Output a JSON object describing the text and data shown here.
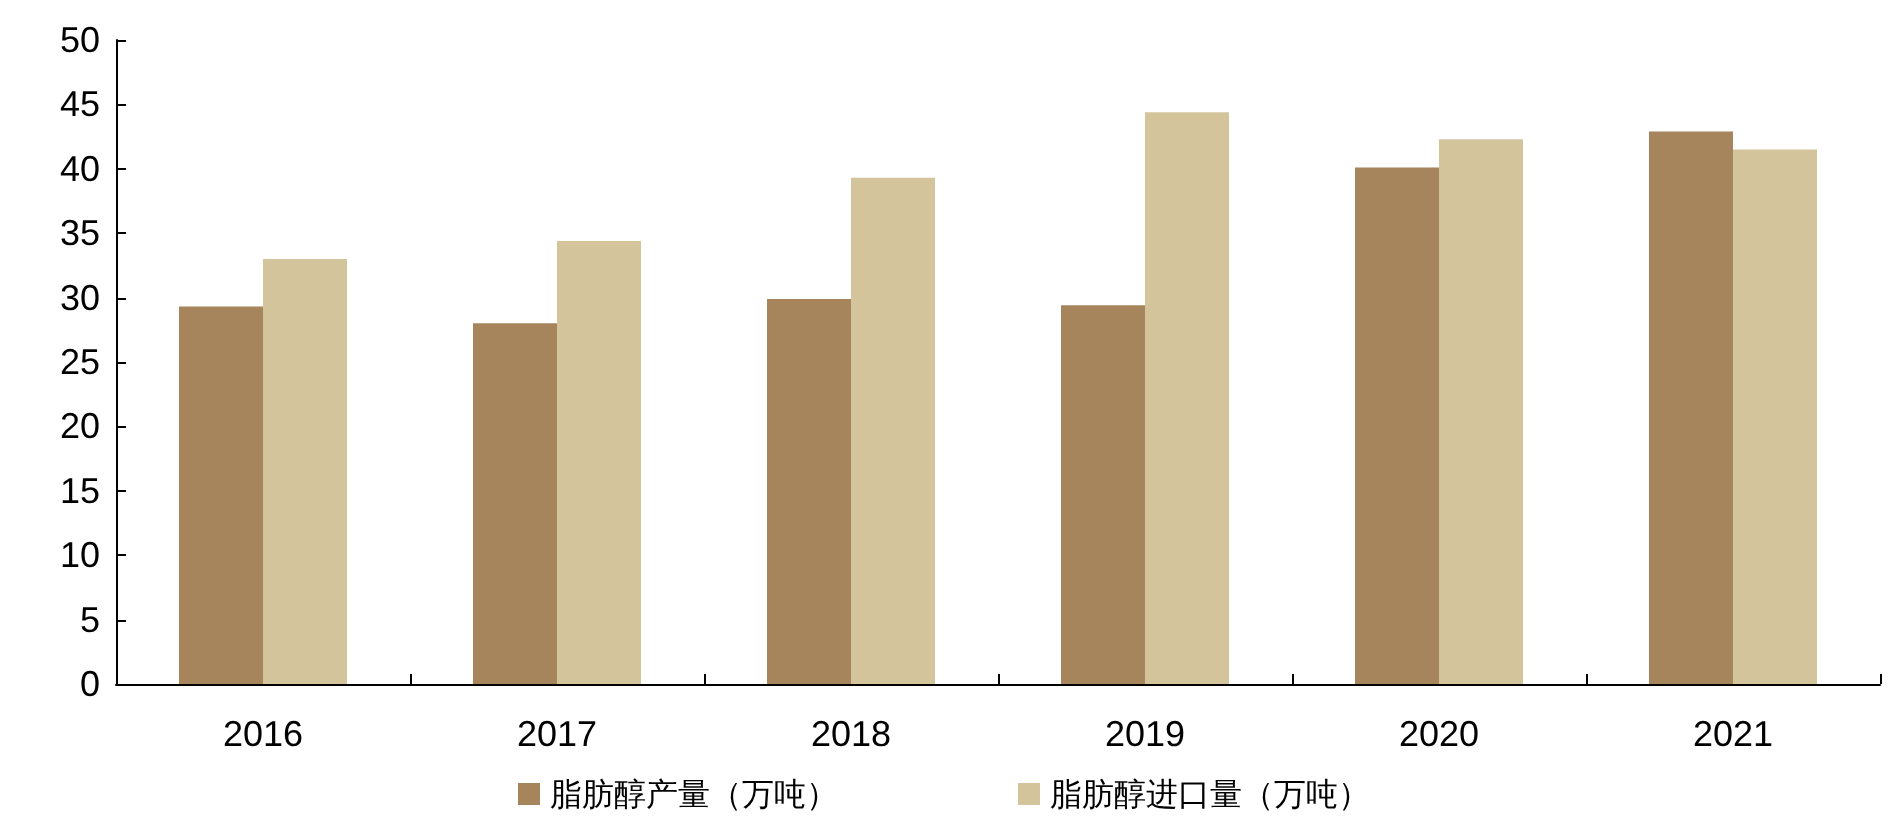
{
  "chart_data": {
    "type": "bar",
    "categories": [
      "2016",
      "2017",
      "2018",
      "2019",
      "2020",
      "2021"
    ],
    "series": [
      {
        "name": "脂肪醇产量（万吨）",
        "color": "#a6845c",
        "values": [
          29.3,
          28.0,
          29.9,
          29.4,
          40.1,
          42.9
        ]
      },
      {
        "name": "脂肪醇进口量（万吨）",
        "color": "#d4c49c",
        "values": [
          33.0,
          34.4,
          39.3,
          44.4,
          42.3,
          41.5
        ]
      }
    ],
    "ylim": [
      0,
      50
    ],
    "yticks": [
      0,
      5,
      10,
      15,
      20,
      25,
      30,
      35,
      40,
      45,
      50
    ],
    "grid": false,
    "legend": "bottom"
  }
}
